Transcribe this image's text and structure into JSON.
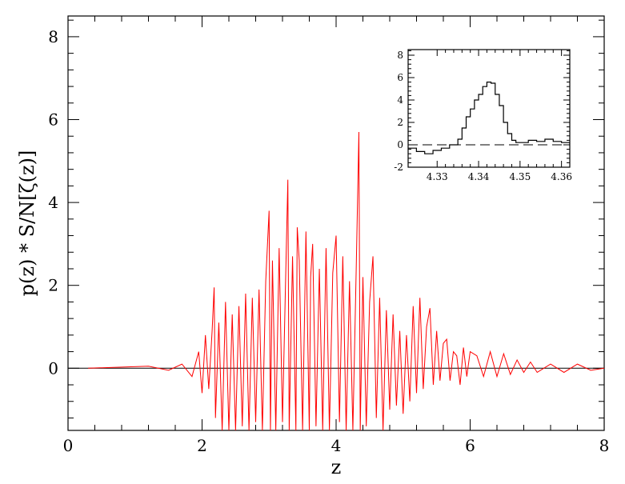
{
  "chart_data": [
    {
      "id": "main",
      "type": "line",
      "xlabel": "z",
      "ylabel": "p(z) * S/N[ζ(z)]",
      "xlim": [
        0,
        8
      ],
      "ylim": [
        -1.5,
        8.5
      ],
      "xticks": [
        0,
        2,
        4,
        6,
        8
      ],
      "yticks": [
        0,
        2,
        4,
        6,
        8
      ],
      "zero_line": true,
      "grid": false,
      "legend": "none",
      "line_color": "#ff0000",
      "series": [
        {
          "x": [
            0.3,
            1.2,
            1.5,
            1.7,
            1.85,
            1.95,
            2.0,
            2.05,
            2.1,
            2.15,
            2.18,
            2.2,
            2.25,
            2.3,
            2.35,
            2.4,
            2.45,
            2.5,
            2.55,
            2.6,
            2.65,
            2.7,
            2.75,
            2.8,
            2.85,
            2.9,
            2.95,
            3.0,
            3.02,
            3.05,
            3.1,
            3.15,
            3.2,
            3.25,
            3.28,
            3.3,
            3.35,
            3.4,
            3.42,
            3.45,
            3.5,
            3.55,
            3.6,
            3.62,
            3.65,
            3.7,
            3.75,
            3.8,
            3.85,
            3.9,
            3.95,
            4.0,
            4.05,
            4.1,
            4.15,
            4.2,
            4.25,
            4.3,
            4.34,
            4.36,
            4.4,
            4.45,
            4.5,
            4.55,
            4.6,
            4.65,
            4.7,
            4.75,
            4.8,
            4.85,
            4.9,
            4.95,
            5.0,
            5.05,
            5.1,
            5.15,
            5.2,
            5.25,
            5.3,
            5.35,
            5.4,
            5.45,
            5.5,
            5.55,
            5.6,
            5.65,
            5.7,
            5.75,
            5.8,
            5.85,
            5.9,
            5.95,
            6.0,
            6.1,
            6.2,
            6.3,
            6.4,
            6.5,
            6.6,
            6.7,
            6.8,
            6.9,
            7.0,
            7.2,
            7.4,
            7.6,
            7.8,
            8.0
          ],
          "y": [
            0.0,
            0.05,
            -0.05,
            0.1,
            -0.2,
            0.4,
            -0.6,
            0.8,
            -0.5,
            0.9,
            1.95,
            -1.2,
            1.1,
            -1.5,
            1.6,
            -1.5,
            1.3,
            -1.5,
            1.5,
            -1.4,
            1.8,
            -1.5,
            1.7,
            -1.3,
            1.9,
            -1.5,
            2.1,
            3.8,
            -1.5,
            2.6,
            -1.5,
            2.9,
            -1.3,
            2.4,
            4.55,
            -1.5,
            2.7,
            -1.5,
            3.4,
            2.6,
            -1.5,
            3.3,
            -1.5,
            2.2,
            3.0,
            -1.4,
            2.4,
            -1.5,
            2.9,
            -1.5,
            2.3,
            3.2,
            -1.3,
            2.7,
            -1.5,
            2.1,
            -1.5,
            2.4,
            5.7,
            -1.5,
            2.2,
            -1.4,
            1.6,
            2.7,
            -1.2,
            1.7,
            -1.5,
            1.4,
            -1.0,
            1.3,
            -0.9,
            0.9,
            -1.1,
            0.8,
            -0.8,
            1.5,
            -0.6,
            1.7,
            -0.5,
            1.0,
            1.45,
            -0.4,
            0.9,
            -0.3,
            0.6,
            0.7,
            -0.3,
            0.4,
            0.3,
            -0.4,
            0.5,
            -0.2,
            0.4,
            0.3,
            -0.2,
            0.4,
            -0.2,
            0.35,
            -0.15,
            0.2,
            -0.1,
            0.15,
            -0.1,
            0.1,
            -0.1,
            0.1,
            -0.05,
            0.0
          ]
        }
      ]
    },
    {
      "id": "inset",
      "type": "line",
      "step": true,
      "xlim": [
        4.323,
        4.362
      ],
      "ylim": [
        -2,
        8.5
      ],
      "xticks": [
        4.33,
        4.34,
        4.35,
        4.36
      ],
      "yticks": [
        -2,
        0,
        2,
        4,
        6,
        8
      ],
      "zero_line": "dashed",
      "line_color": "#000000",
      "series": [
        {
          "x": [
            4.323,
            4.325,
            4.327,
            4.329,
            4.331,
            4.333,
            4.335,
            4.336,
            4.337,
            4.338,
            4.339,
            4.34,
            4.341,
            4.342,
            4.343,
            4.344,
            4.345,
            4.346,
            4.347,
            4.348,
            4.349,
            4.35,
            4.352,
            4.354,
            4.356,
            4.358,
            4.36,
            4.362
          ],
          "y": [
            -0.3,
            -0.6,
            -0.8,
            -0.5,
            -0.3,
            0.0,
            0.5,
            1.5,
            2.5,
            3.2,
            4.0,
            4.5,
            5.2,
            5.6,
            5.5,
            4.5,
            3.5,
            2.0,
            1.0,
            0.4,
            0.2,
            0.2,
            0.4,
            0.3,
            0.5,
            0.3,
            0.2,
            -0.1
          ]
        }
      ]
    }
  ]
}
